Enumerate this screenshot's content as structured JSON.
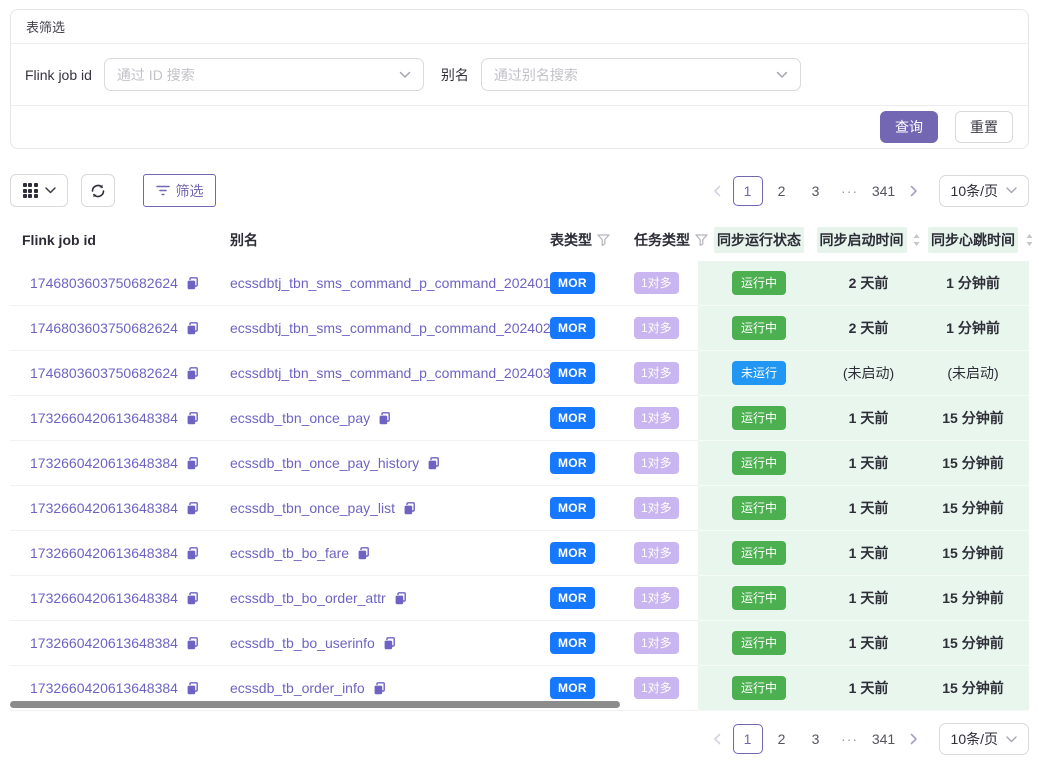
{
  "filter_panel": {
    "title": "表筛选",
    "fields": [
      {
        "label": "Flink job id",
        "placeholder": "通过 ID 搜索"
      },
      {
        "label": "别名",
        "placeholder": "通过别名搜索"
      }
    ],
    "query_label": "查询",
    "reset_label": "重置"
  },
  "toolbar": {
    "filter_label": "筛选"
  },
  "pagination": {
    "pages": [
      "1",
      "2",
      "3",
      "···",
      "341"
    ],
    "active": "1",
    "page_size": "10条/页"
  },
  "table": {
    "columns": [
      {
        "label": "Flink job id"
      },
      {
        "label": "别名"
      },
      {
        "label": "表类型",
        "filter": true
      },
      {
        "label": "任务类型",
        "filter": true
      },
      {
        "label": "同步运行状态",
        "highlight": true
      },
      {
        "label": "同步启动时间",
        "sort": true,
        "highlight": true
      },
      {
        "label": "同步心跳时间",
        "sort": true,
        "highlight": true
      }
    ],
    "rows": [
      {
        "id": "1746803603750682624",
        "alias": "ecssdbtj_tbn_sms_command_p_command_202401",
        "table_type": "MOR",
        "task_type": "1对多",
        "status": "运行中",
        "running": true,
        "start": "2 天前",
        "heartbeat": "1 分钟前"
      },
      {
        "id": "1746803603750682624",
        "alias": "ecssdbtj_tbn_sms_command_p_command_202402",
        "table_type": "MOR",
        "task_type": "1对多",
        "status": "运行中",
        "running": true,
        "start": "2 天前",
        "heartbeat": "1 分钟前"
      },
      {
        "id": "1746803603750682624",
        "alias": "ecssdbtj_tbn_sms_command_p_command_202403",
        "table_type": "MOR",
        "task_type": "1对多",
        "status": "未运行",
        "running": false,
        "start": "(未启动)",
        "heartbeat": "(未启动)"
      },
      {
        "id": "1732660420613648384",
        "alias": "ecssdb_tbn_once_pay",
        "table_type": "MOR",
        "task_type": "1对多",
        "status": "运行中",
        "running": true,
        "start": "1 天前",
        "heartbeat": "15 分钟前"
      },
      {
        "id": "1732660420613648384",
        "alias": "ecssdb_tbn_once_pay_history",
        "table_type": "MOR",
        "task_type": "1对多",
        "status": "运行中",
        "running": true,
        "start": "1 天前",
        "heartbeat": "15 分钟前"
      },
      {
        "id": "1732660420613648384",
        "alias": "ecssdb_tbn_once_pay_list",
        "table_type": "MOR",
        "task_type": "1对多",
        "status": "运行中",
        "running": true,
        "start": "1 天前",
        "heartbeat": "15 分钟前"
      },
      {
        "id": "1732660420613648384",
        "alias": "ecssdb_tb_bo_fare",
        "table_type": "MOR",
        "task_type": "1对多",
        "status": "运行中",
        "running": true,
        "start": "1 天前",
        "heartbeat": "15 分钟前"
      },
      {
        "id": "1732660420613648384",
        "alias": "ecssdb_tb_bo_order_attr",
        "table_type": "MOR",
        "task_type": "1对多",
        "status": "运行中",
        "running": true,
        "start": "1 天前",
        "heartbeat": "15 分钟前"
      },
      {
        "id": "1732660420613648384",
        "alias": "ecssdb_tb_bo_userinfo",
        "table_type": "MOR",
        "task_type": "1对多",
        "status": "运行中",
        "running": true,
        "start": "1 天前",
        "heartbeat": "15 分钟前"
      },
      {
        "id": "1732660420613648384",
        "alias": "ecssdb_tb_order_info",
        "table_type": "MOR",
        "task_type": "1对多",
        "status": "运行中",
        "running": true,
        "start": "1 天前",
        "heartbeat": "15 分钟前"
      }
    ]
  },
  "colors": {
    "accent": "#7367b4",
    "link": "#6e63c4",
    "badge_mor": "#1677ff",
    "badge_task": "#c9b5ef",
    "status_running": "#4caf50",
    "status_not_running": "#2196f3",
    "column_highlight": "#e9f6ee"
  }
}
